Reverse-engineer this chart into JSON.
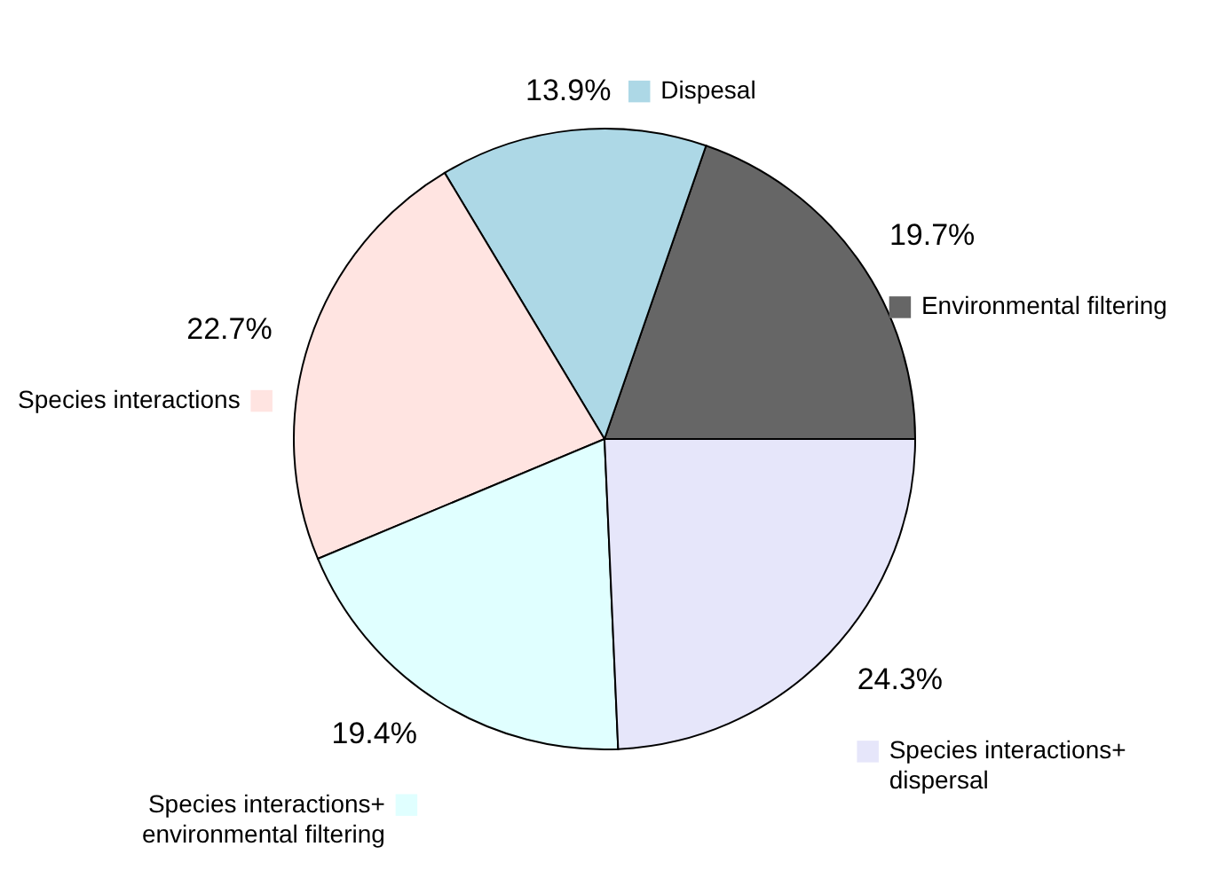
{
  "chart_data": {
    "type": "pie",
    "categories": [
      "Environmental filtering",
      "Dispesal",
      "Species interactions",
      "Species interactions+ environmental filtering",
      "Species interactions+ dispersal"
    ],
    "values": [
      19.7,
      13.9,
      22.7,
      19.4,
      24.3
    ],
    "value_labels": [
      "19.7%",
      "13.9%",
      "22.7%",
      "19.4%",
      "24.3%"
    ],
    "colors": [
      "#666666",
      "#add8e6",
      "#ffe4e1",
      "#e0ffff",
      "#e6e6fa"
    ],
    "legend": "right"
  }
}
